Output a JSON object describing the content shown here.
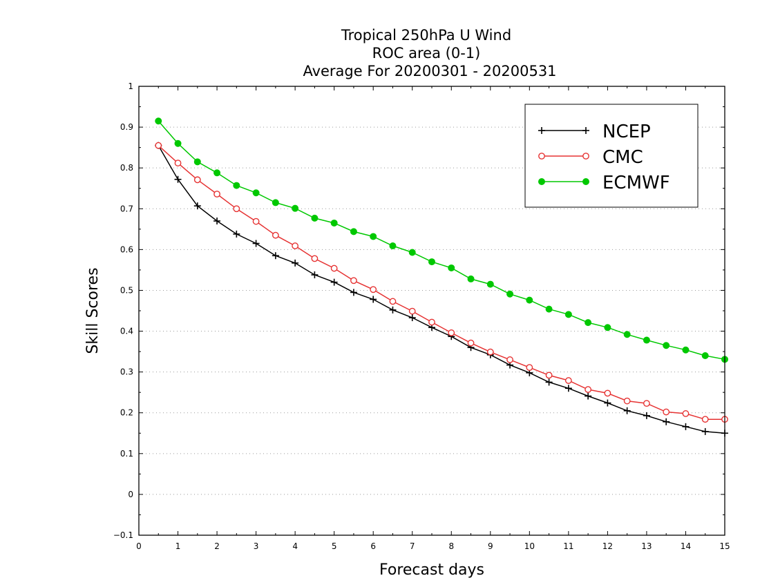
{
  "chart_data": {
    "type": "line",
    "title_lines": [
      "Tropical 250hPa U Wind",
      "ROC area (0-1)",
      "Average For 20200301 - 20200531"
    ],
    "xlabel": "Forecast days",
    "ylabel": "Skill Scores",
    "xlim": [
      0,
      15
    ],
    "ylim": [
      -0.1,
      1
    ],
    "x_ticks": [
      0,
      1,
      2,
      3,
      4,
      5,
      6,
      7,
      8,
      9,
      10,
      11,
      12,
      13,
      14,
      15
    ],
    "y_ticks": [
      -0.1,
      0,
      0.1,
      0.2,
      0.3,
      0.4,
      0.5,
      0.6,
      0.7,
      0.8,
      0.9,
      1
    ],
    "x_tick_labels": [
      "0",
      "1",
      "2",
      "3",
      "4",
      "5",
      "6",
      "7",
      "8",
      "9",
      "10",
      "11",
      "12",
      "13",
      "14",
      "15"
    ],
    "y_tick_labels": [
      "−0.1",
      "0",
      "0.1",
      "0.2",
      "0.3",
      "0.4",
      "0.5",
      "0.6",
      "0.7",
      "0.8",
      "0.9",
      "1"
    ],
    "grid": "horizontal dotted",
    "legend_position": "top-right",
    "x": [
      0.5,
      1,
      1.5,
      2,
      2.5,
      3,
      3.5,
      4,
      4.5,
      5,
      5.5,
      6,
      6.5,
      7,
      7.5,
      8,
      8.5,
      9,
      9.5,
      10,
      10.5,
      11,
      11.5,
      12,
      12.5,
      13,
      13.5,
      14,
      14.5,
      15
    ],
    "series": [
      {
        "name": "NCEP",
        "color": "#000000",
        "marker": "plus",
        "values": [
          0.855,
          0.772,
          0.707,
          0.67,
          0.638,
          0.615,
          0.585,
          0.567,
          0.538,
          0.52,
          0.495,
          0.478,
          0.452,
          0.433,
          0.409,
          0.387,
          0.36,
          0.342,
          0.317,
          0.298,
          0.275,
          0.26,
          0.241,
          0.224,
          0.205,
          0.193,
          0.178,
          0.166,
          0.154,
          0.15
        ]
      },
      {
        "name": "CMC",
        "color": "#e63232",
        "marker": "open-circle",
        "values": [
          0.855,
          0.812,
          0.771,
          0.736,
          0.7,
          0.669,
          0.635,
          0.609,
          0.578,
          0.554,
          0.524,
          0.502,
          0.473,
          0.449,
          0.422,
          0.396,
          0.371,
          0.349,
          0.33,
          0.311,
          0.292,
          0.279,
          0.257,
          0.248,
          0.229,
          0.223,
          0.202,
          0.198,
          0.184,
          0.184
        ]
      },
      {
        "name": "ECMWF",
        "color": "#00c800",
        "marker": "filled-circle",
        "values": [
          0.915,
          0.86,
          0.815,
          0.788,
          0.757,
          0.739,
          0.715,
          0.701,
          0.677,
          0.665,
          0.644,
          0.632,
          0.609,
          0.593,
          0.57,
          0.555,
          0.528,
          0.515,
          0.491,
          0.476,
          0.454,
          0.441,
          0.421,
          0.409,
          0.392,
          0.378,
          0.365,
          0.354,
          0.34,
          0.331
        ]
      }
    ]
  }
}
